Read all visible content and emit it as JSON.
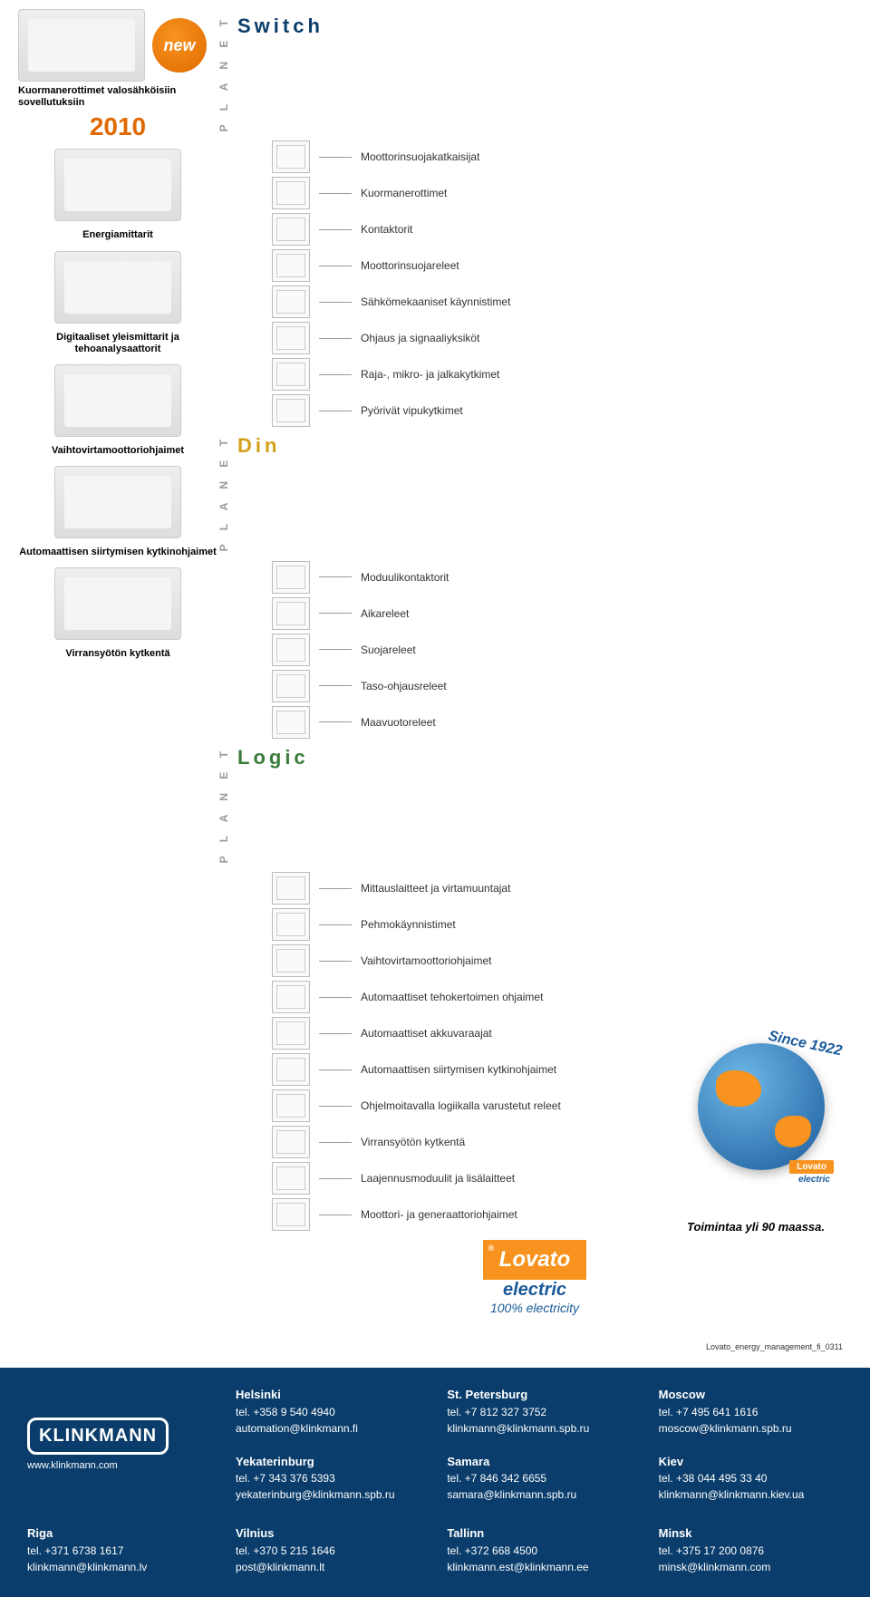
{
  "newBadge": "new",
  "year": "2010",
  "planetLabel": "P L A N E T",
  "leftProducts": [
    {
      "cap": "Kuormanerottimet valosähköisiin sovellutuksiin"
    },
    {
      "cap": "Energiamittarit"
    },
    {
      "cap": "Digitaaliset yleismittarit ja tehoanalysaattorit"
    },
    {
      "cap": "Vaihtovirtamoottoriohjaimet"
    },
    {
      "cap": "Automaattisen siirtymisen kytkinohjaimet"
    },
    {
      "cap": "Virransyötön kytkentä"
    }
  ],
  "categories": [
    {
      "title": "Switch",
      "colorClass": "switch-col",
      "items": [
        "Moottorinsuojakatkaisijat",
        "Kuormanerottimet",
        "Kontaktorit",
        "Moottorinsuojareleet",
        "Sähkömekaaniset käynnistimet",
        "Ohjaus ja signaaliyksiköt",
        "Raja-, mikro- ja jalkakytkimet",
        "Pyörivät vipukytkimet"
      ]
    },
    {
      "title": "Din",
      "colorClass": "din-col",
      "items": [
        "Moduulikontaktorit",
        "Aikareleet",
        "Suojareleet",
        "Taso-ohjausreleet",
        "Maavuotoreleet"
      ]
    },
    {
      "title": "Logic",
      "colorClass": "logic-col",
      "items": [
        "Mittauslaitteet ja virtamuuntajat",
        "Pehmokäynnistimet",
        "Vaihtovirtamoottoriohjaimet",
        "Automaattiset tehokertoimen ohjaimet",
        "Automaattiset akkuvaraajat",
        "Automaattisen siirtymisen kytkinohjaimet",
        "Ohjelmoitavalla logiikalla varustetut releet",
        "Virransyötön kytkentä",
        "Laajennusmoduulit ja lisälaitteet",
        "Moottori- ja generaattoriohjaimet"
      ]
    }
  ],
  "since": "Since 1922",
  "globeBrand": "Lovato",
  "globeBrand2": "electric",
  "toimintaa": "Toimintaa yli 90 maassa.",
  "lovato": {
    "r": "®",
    "name": "Lovato",
    "sub": "electric",
    "hundred": "100% electricity"
  },
  "docid": "Lovato_energy_management_fi_0311",
  "klinkmann": {
    "logo": "KLINKMANN",
    "web": "www.klinkmann.com"
  },
  "offices": [
    [
      {
        "city": "Helsinki",
        "tel": "tel. +358 9 540 4940",
        "mail": "automation@klinkmann.fi"
      },
      {
        "city": "St. Petersburg",
        "tel": "tel. +7 812 327 3752",
        "mail": "klinkmann@klinkmann.spb.ru"
      },
      {
        "city": "Moscow",
        "tel": "tel. +7 495 641 1616",
        "mail": "moscow@klinkmann.spb.ru"
      }
    ],
    [
      {
        "city": "Yekaterinburg",
        "tel": "tel. +7 343 376 5393",
        "mail": "yekaterinburg@klinkmann.spb.ru"
      },
      {
        "city": "Samara",
        "tel": "tel. +7 846 342 6655",
        "mail": "samara@klinkmann.spb.ru"
      },
      {
        "city": "Kiev",
        "tel": "tel. +38 044 495 33 40",
        "mail": "klinkmann@klinkmann.kiev.ua"
      }
    ],
    [
      {
        "city": "Riga",
        "tel": "tel. +371 6738 1617",
        "mail": "klinkmann@klinkmann.lv"
      },
      {
        "city": "Vilnius",
        "tel": "tel. +370 5 215 1646",
        "mail": "post@klinkmann.lt"
      },
      {
        "city": "Tallinn",
        "tel": "tel. +372 668 4500",
        "mail": "klinkmann.est@klinkmann.ee"
      },
      {
        "city": "Minsk",
        "tel": "tel. +375 17 200 0876",
        "mail": "minsk@klinkmann.com"
      }
    ]
  ]
}
